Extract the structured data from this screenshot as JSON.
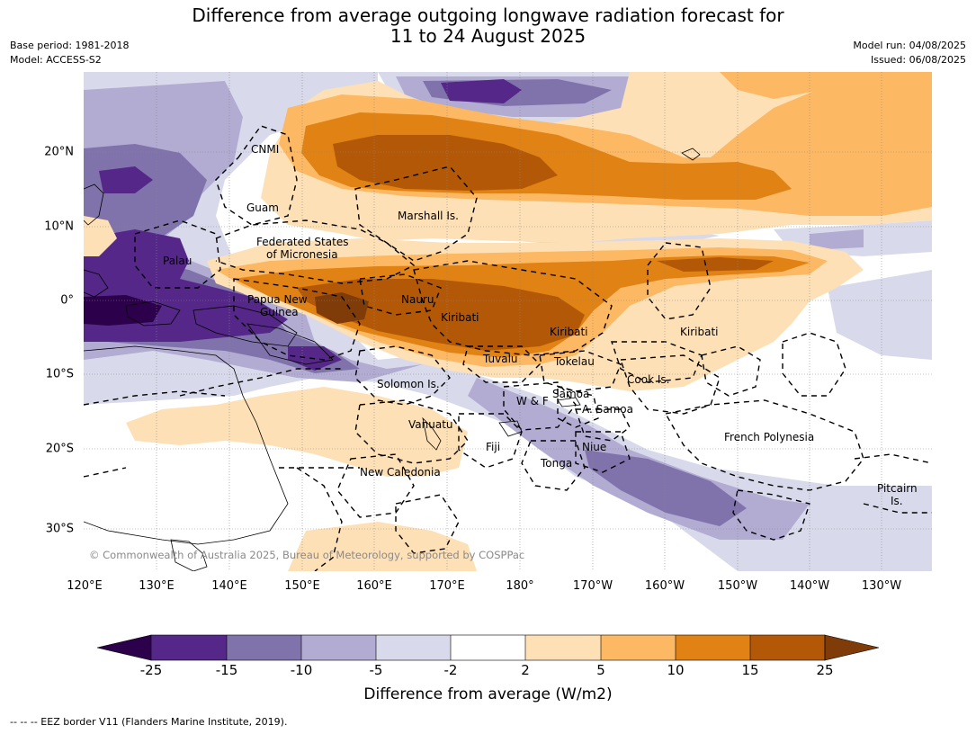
{
  "title": {
    "line1": "Difference from average outgoing longwave radiation forecast for",
    "line2": "11 to 24 August 2025"
  },
  "meta": {
    "base_period": "Base period: 1981-2018",
    "model": "Model: ACCESS-S2",
    "model_run": "Model run: 04/08/2025",
    "issued": "Issued: 06/08/2025"
  },
  "axes": {
    "lon_labels": [
      "120°E",
      "130°E",
      "140°E",
      "150°E",
      "160°E",
      "170°E",
      "180°",
      "170°W",
      "160°W",
      "150°W",
      "140°W",
      "130°W"
    ],
    "lat_labels": [
      "20°N",
      "10°N",
      "0°",
      "10°S",
      "20°S",
      "30°S"
    ]
  },
  "places": [
    {
      "name": "CNMI"
    },
    {
      "name": "Guam"
    },
    {
      "name": "Marshall Is."
    },
    {
      "name": "Federated States"
    },
    {
      "name": "of Micronesia"
    },
    {
      "name": "Palau"
    },
    {
      "name": "Papua New"
    },
    {
      "name": "Guinea"
    },
    {
      "name": "Nauru"
    },
    {
      "name": "Kiribati"
    },
    {
      "name": "Kiribati"
    },
    {
      "name": "Kiribati"
    },
    {
      "name": "Tuvalu"
    },
    {
      "name": "Tokelau"
    },
    {
      "name": "Cook Is."
    },
    {
      "name": "Solomon Is."
    },
    {
      "name": "Samoa"
    },
    {
      "name": "W & F"
    },
    {
      "name": "A. Samoa"
    },
    {
      "name": "Vanuatu"
    },
    {
      "name": "Fiji"
    },
    {
      "name": "Niue"
    },
    {
      "name": "Tonga"
    },
    {
      "name": "French Polynesia"
    },
    {
      "name": "New Caledonia"
    },
    {
      "name": "Pitcairn"
    },
    {
      "name": "Is."
    }
  ],
  "copyright": "© Commonwealth of Australia 2025, Bureau of Meteorology, supported by COSPPac",
  "colorbar": {
    "title": "Difference from average (W/m2)",
    "ticks": [
      "-25",
      "-15",
      "-10",
      "-5",
      "-2",
      "2",
      "5",
      "10",
      "15",
      "25"
    ],
    "colors": {
      "lt-25": "#2d004b",
      "-25_-15": "#542788",
      "-15_-10": "#8073ac",
      "-10_-5": "#b2abd2",
      "-5_-2": "#d8daeb",
      "-2_2": "#ffffff",
      "2_5": "#fee0b6",
      "5_10": "#fdb863",
      "10_15": "#e08214",
      "15_25": "#b35806",
      "gt25": "#7f3b08"
    }
  },
  "footnote": "--  --  -- EEZ border V11 (Flanders Marine Institute, 2019)."
}
